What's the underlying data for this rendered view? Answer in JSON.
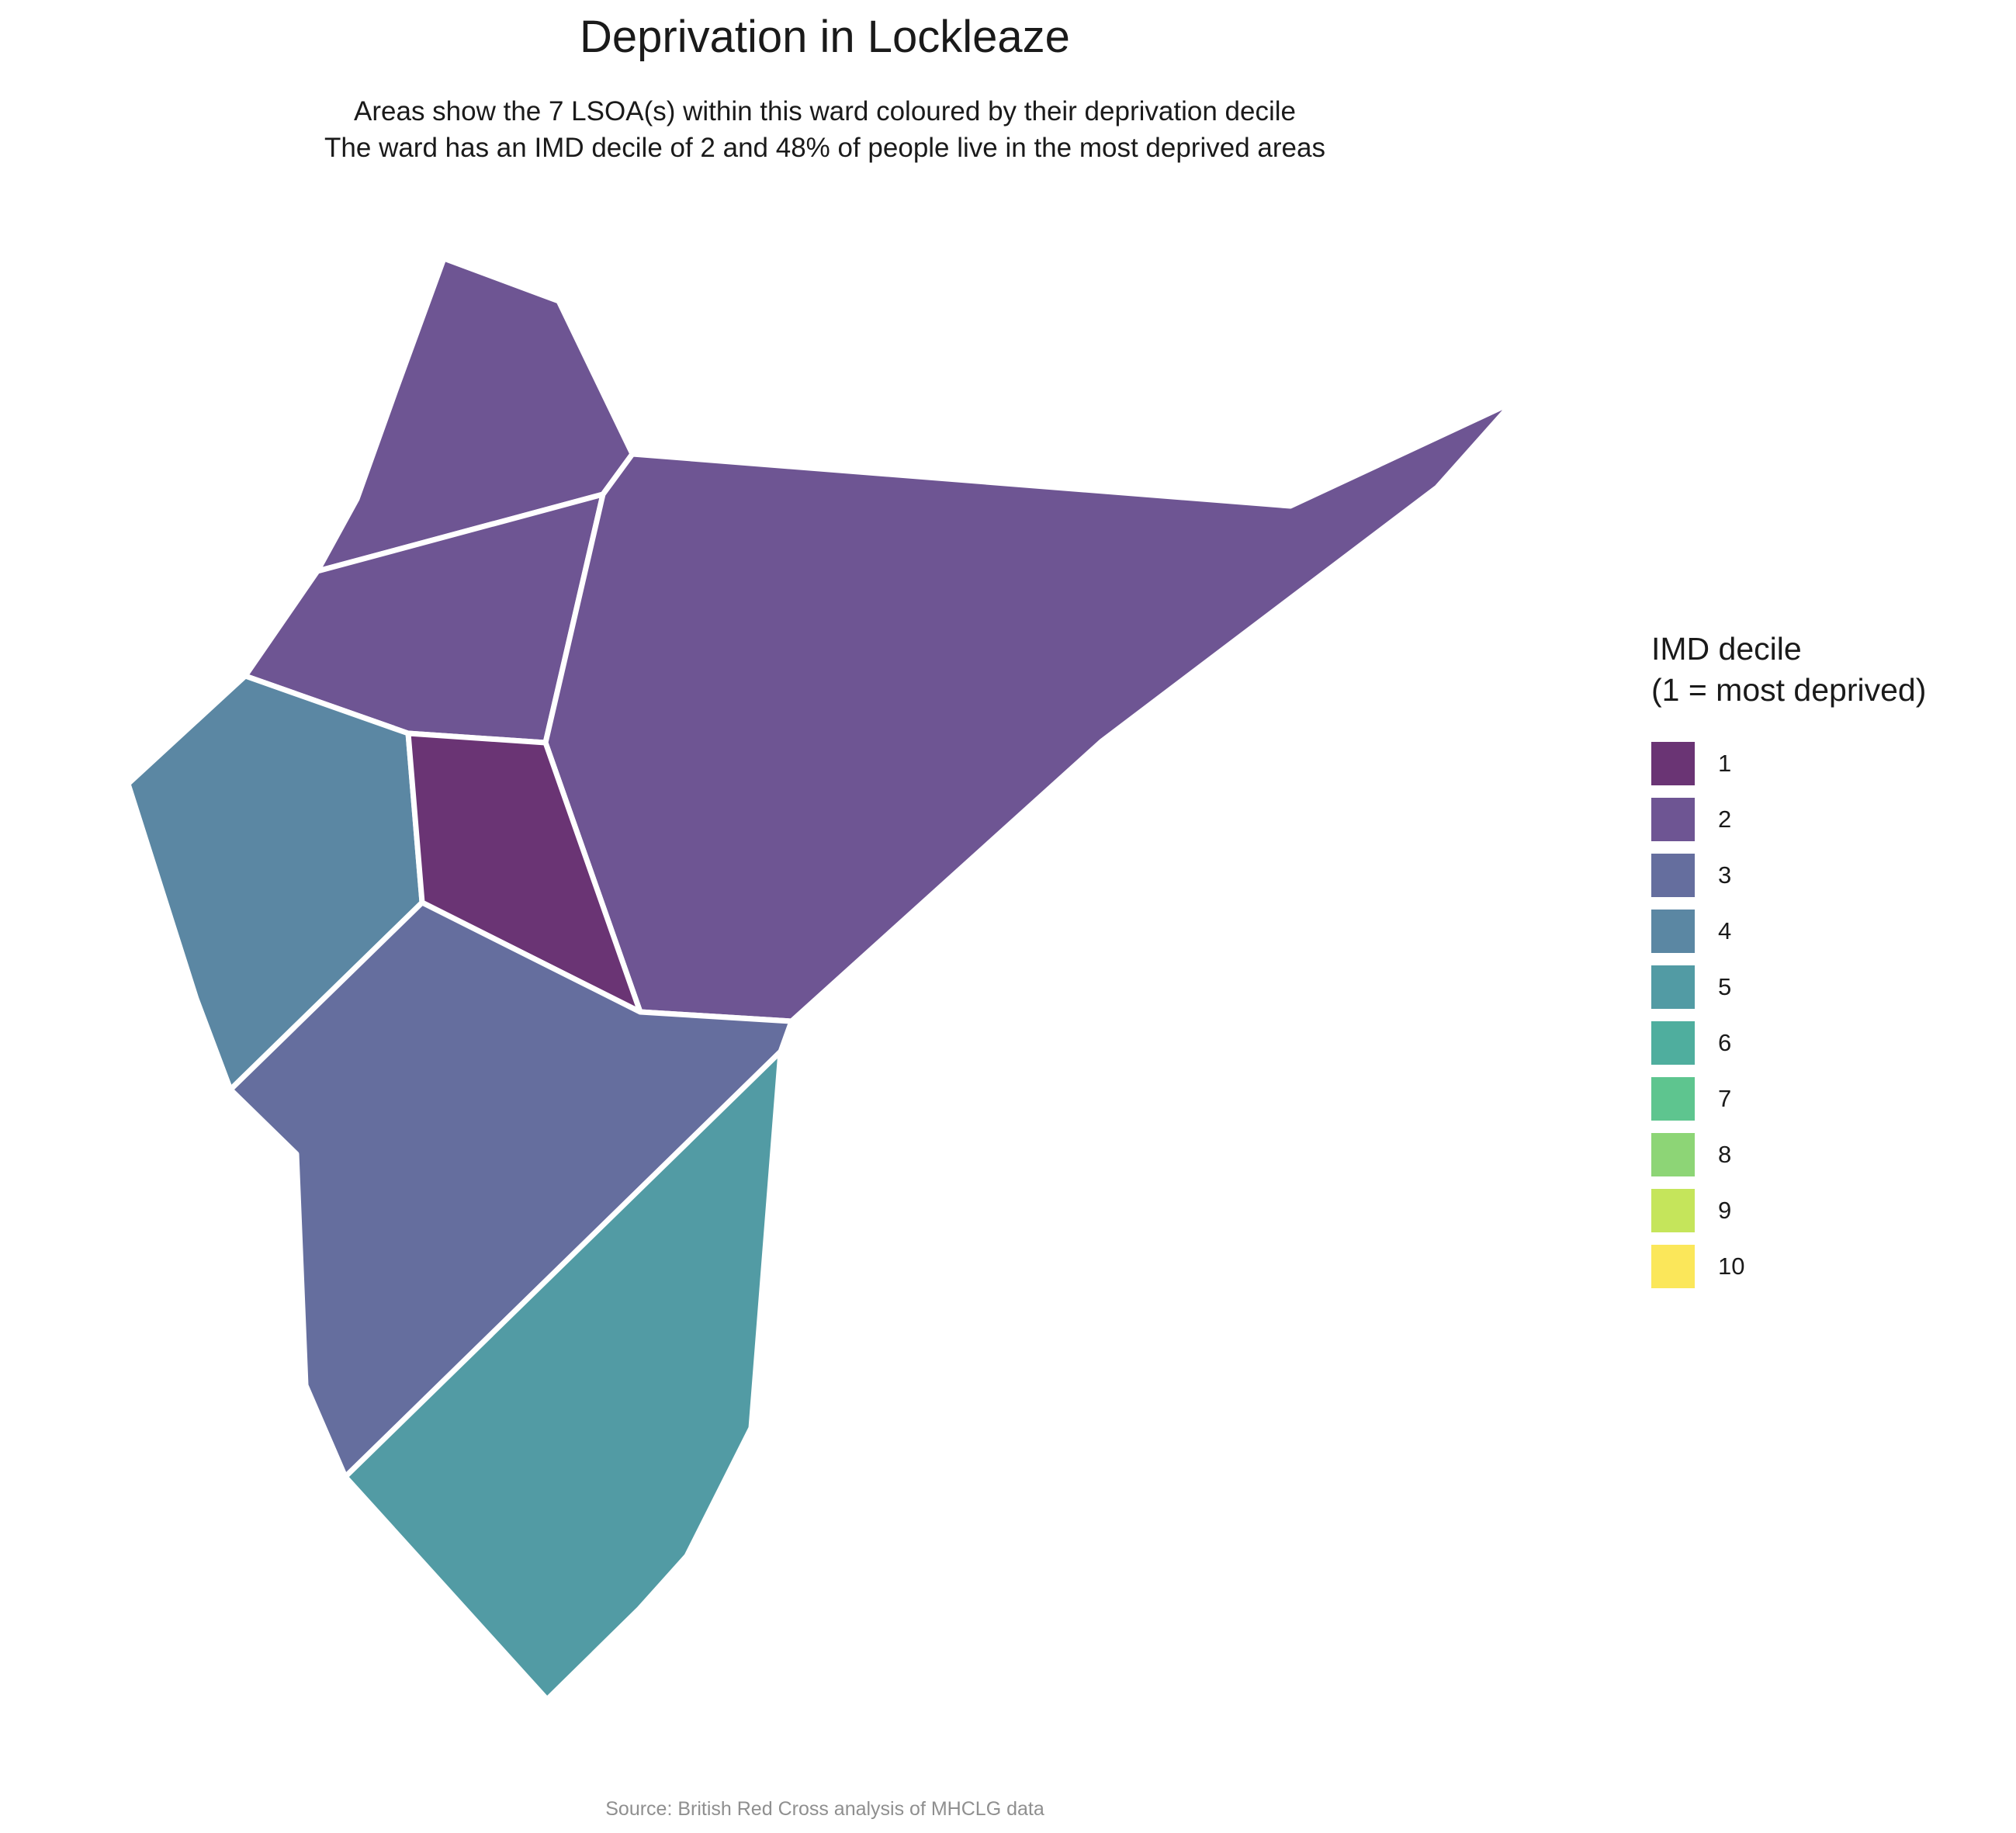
{
  "title": "Deprivation in Lockleaze",
  "subtitle": {
    "line1": "Areas show the 7 LSOA(s) within this ward coloured by their deprivation decile",
    "line2": "The ward has an IMD decile of 2 and 48% of people live in the most deprived areas"
  },
  "legend": {
    "title_line1": "IMD decile",
    "title_line2": "(1 = most deprived)",
    "items": [
      {
        "label": "1",
        "color": "#6a3474"
      },
      {
        "label": "2",
        "color": "#6e5593"
      },
      {
        "label": "3",
        "color": "#656e9e"
      },
      {
        "label": "4",
        "color": "#5b87a3"
      },
      {
        "label": "5",
        "color": "#529ba4"
      },
      {
        "label": "6",
        "color": "#4fae9e"
      },
      {
        "label": "7",
        "color": "#5ec58f"
      },
      {
        "label": "8",
        "color": "#8dd576"
      },
      {
        "label": "9",
        "color": "#c5e55b"
      },
      {
        "label": "10",
        "color": "#fbe75a"
      }
    ]
  },
  "map": {
    "border_color": "#ffffff",
    "areas": [
      {
        "name": "north",
        "decile": 2
      },
      {
        "name": "north-middle",
        "decile": 2
      },
      {
        "name": "east",
        "decile": 2
      },
      {
        "name": "west",
        "decile": 4
      },
      {
        "name": "centre",
        "decile": 1
      },
      {
        "name": "south-west",
        "decile": 3
      },
      {
        "name": "south",
        "decile": 5
      }
    ]
  },
  "source": "Source: British Red Cross analysis of MHCLG data"
}
